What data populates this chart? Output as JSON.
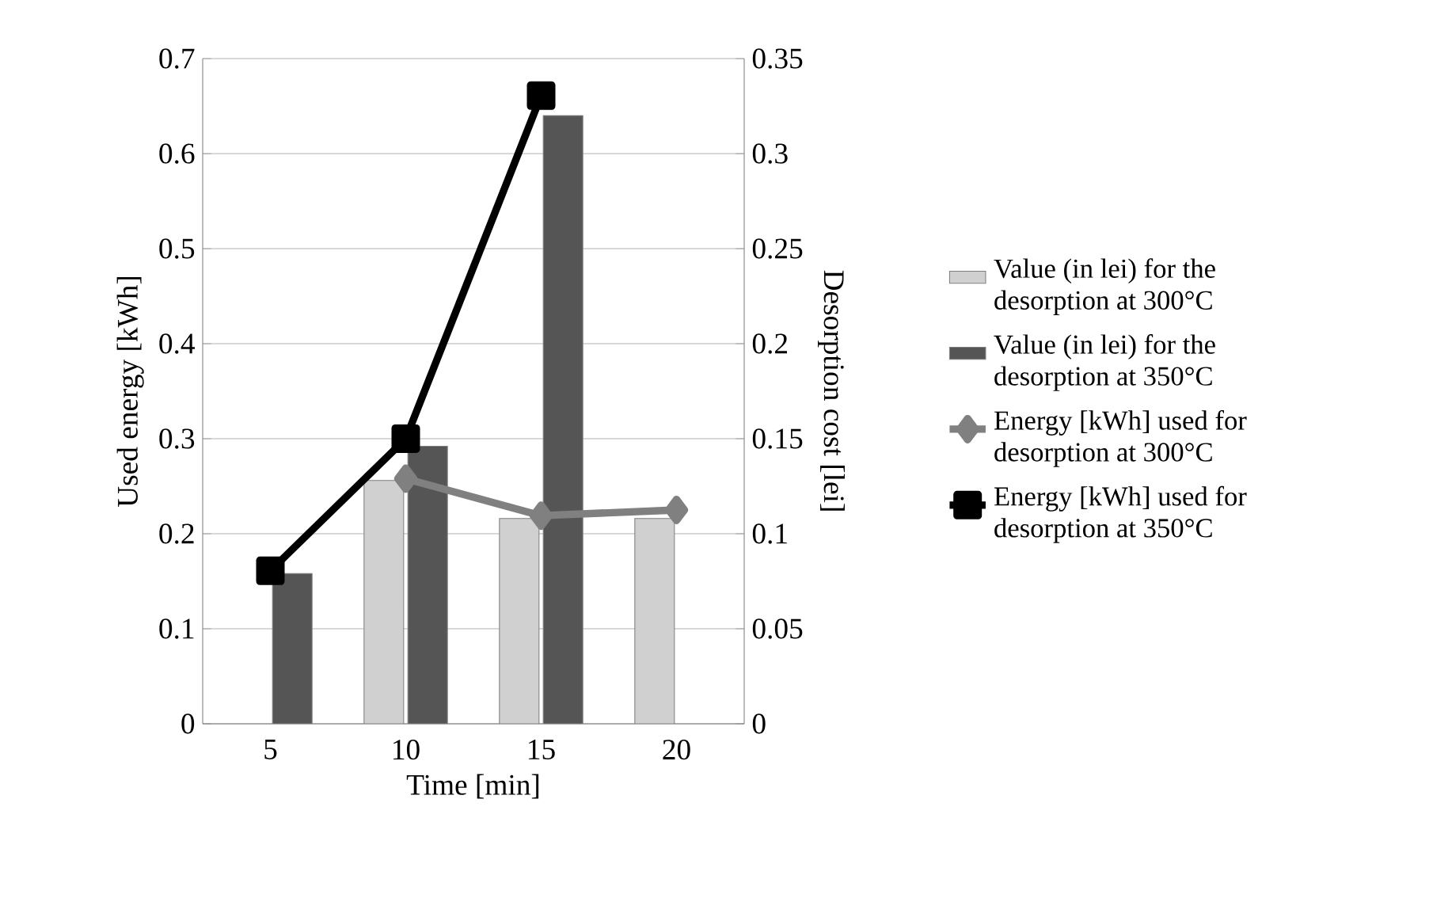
{
  "chart_data": {
    "type": "bar",
    "xlabel": "Time [min]",
    "ylabel": "Used energy  [kWh]",
    "y2label": "Desorption cost [lei]",
    "categories": [
      "5",
      "10",
      "15",
      "20"
    ],
    "series": [
      {
        "name": "Value (in lei) for the desorption at 300°C",
        "type": "bar",
        "axis": "y2",
        "color": "#d0d0d0",
        "values": [
          null,
          0.128,
          0.108,
          0.108
        ]
      },
      {
        "name": "Value (in lei) for the desorption at 350°C",
        "type": "bar",
        "axis": "y2",
        "color": "#555555",
        "values": [
          0.079,
          0.146,
          0.32,
          null
        ]
      },
      {
        "name": "Energy [kWh] used for desorption at 300°C",
        "type": "line",
        "color": "#808080",
        "marker": "diamond",
        "values": [
          null,
          0.258,
          0.219,
          0.225
        ]
      },
      {
        "name": "Energy [kWh] used for desorption at 350°C",
        "type": "line",
        "color": "#000000",
        "marker": "square",
        "values": [
          0.161,
          0.3,
          0.661,
          null
        ]
      }
    ],
    "ylim": [
      0,
      0.7
    ],
    "yticks": [
      0,
      0.1,
      0.2,
      0.3,
      0.4,
      0.5,
      0.6,
      0.7
    ],
    "y2lim": [
      0,
      0.35
    ],
    "y2ticks": [
      0,
      0.05,
      0.1,
      0.15,
      0.2,
      0.25,
      0.3,
      0.35
    ],
    "grid": "y",
    "legend": "right"
  }
}
